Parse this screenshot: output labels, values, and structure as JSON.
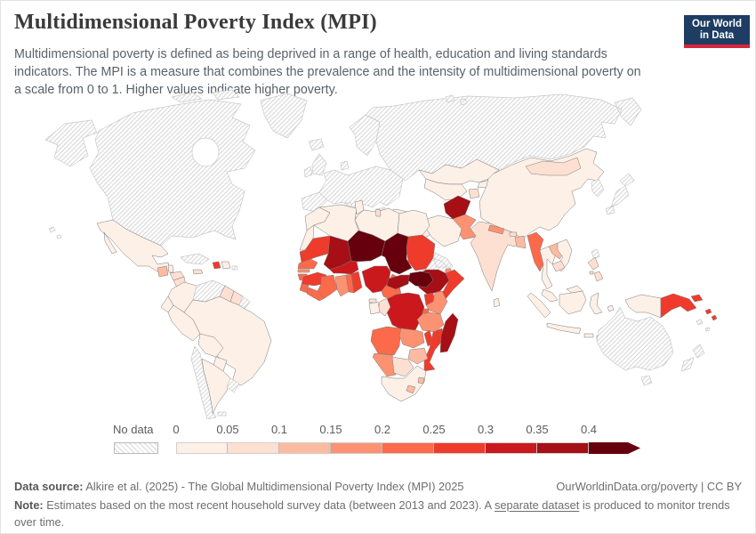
{
  "header": {
    "title": "Multidimensional Poverty Index (MPI)",
    "subtitle_lines": [
      "Multidimensional poverty is defined as being deprived in a range of health, education and living standards",
      "indicators. The MPI is a measure that combines the prevalence and the intensity of multidimensional poverty on",
      "a scale from 0 to 1. Higher values indicate higher poverty."
    ],
    "logo": {
      "line1": "Our World",
      "line2": "in Data",
      "bg": "#1d3d63",
      "bar": "#d7263d"
    }
  },
  "chart_data": {
    "type": "choropleth",
    "title": "Multidimensional Poverty Index (MPI)",
    "scale_note": "scale from 0 to 1, higher values indicate higher poverty",
    "legend": {
      "no_data_label": "No data",
      "tick_labels": [
        "0",
        "0.05",
        "0.1",
        "0.15",
        "0.2",
        "0.25",
        "0.3",
        "0.35",
        "0.4"
      ],
      "open_ended_max": true,
      "bins": [
        {
          "range": "0-0.05",
          "color": "#fdf0e7"
        },
        {
          "range": "0.05-0.1",
          "color": "#fee0d2"
        },
        {
          "range": "0.1-0.15",
          "color": "#fcbba1"
        },
        {
          "range": "0.15-0.2",
          "color": "#fc9272"
        },
        {
          "range": "0.2-0.25",
          "color": "#fb6a4a"
        },
        {
          "range": "0.25-0.3",
          "color": "#ef3b2c"
        },
        {
          "range": "0.3-0.35",
          "color": "#cb181d"
        },
        {
          "range": "0.35-0.4",
          "color": "#a50f15"
        },
        {
          "range": "0.4+",
          "color": "#67000d"
        }
      ],
      "no_data_style": {
        "background": "#ffffff",
        "stripe": "#d8d8d8"
      }
    },
    "regions": {
      "north-america": "no_data",
      "greenland": "no_data",
      "iceland": "no_data",
      "europe": "no_data",
      "russia": "no_data",
      "svalbard": "no_data",
      "cuba": "no_data",
      "puerto-rico": "no_data",
      "venezuela": "no_data",
      "french-guiana": "no_data",
      "chile": "no_data",
      "uruguay": "no_data",
      "falkland-islands": "no_data",
      "australia": "no_data",
      "new-zealand": "no_data",
      "japan": "no_data",
      "korea": "no_data",
      "taiwan": "no_data",
      "levant": "no_data",
      "saudi-arabia": "no_data",
      "eritrea": "no_data",
      "hawaii": "no_data",
      "pacific-islands": "no_data",
      "mexico": 0,
      "guatemala": 2,
      "belize": 0,
      "honduras": 1,
      "nicaragua": 1,
      "costa-rica": 0,
      "panama": 0,
      "jamaica": 1,
      "haiti": 5,
      "dominican-republic": 0,
      "colombia": 0,
      "guyana": 1,
      "suriname": 1,
      "ecuador": 0,
      "peru": 0,
      "brazil": 0,
      "bolivia": 0,
      "paraguay": 0,
      "argentina": 0,
      "morocco": 0,
      "western-sahara": 0,
      "algeria": 0,
      "tunisia": 0,
      "libya": 0,
      "egypt": 0,
      "mauritania": 5,
      "mali": 7,
      "niger": 8,
      "chad": 8,
      "sudan": 5,
      "south-sudan": 8,
      "djibouti": 3,
      "ethiopia": 7,
      "somalia": 5,
      "senegal": 4,
      "gambia": 3,
      "guinea-bissau": 4,
      "guinea": 5,
      "sierra-leone": 4,
      "liberia": 4,
      "ivory-coast": 4,
      "ghana": 3,
      "togo": 4,
      "benin": 5,
      "burkina-faso": 6,
      "nigeria": 6,
      "cameroon": 4,
      "central-african-republic": 7,
      "uganda": 5,
      "kenya": 3,
      "rwanda": 4,
      "burundi": 7,
      "drc": 6,
      "congo": 1,
      "gabon": 0,
      "equatorial-guinea": 1,
      "angola": 4,
      "zambia": 3,
      "tanzania": 3,
      "malawi": 5,
      "mozambique": 5,
      "zimbabwe": 2,
      "namibia": 3,
      "botswana": 1,
      "south-africa": 0,
      "lesotho": 2,
      "eswatini": 2,
      "madagascar": 7,
      "albania": 1,
      "turkey": 0,
      "iraq": 0,
      "iran": 0,
      "yemen": 3,
      "kazakhstan": 0,
      "uzbekistan": 0,
      "kyrgyzstan": 0,
      "tajikistan": 1,
      "afghanistan": 7,
      "pakistan": 3,
      "india": 1,
      "nepal": 3,
      "bhutan": 1,
      "bangladesh": 2,
      "sri-lanka": 0,
      "china": 0,
      "mongolia": 1,
      "myanmar": 4,
      "thailand": 0,
      "laos": 2,
      "vietnam": 0,
      "cambodia": 1,
      "malaysia": 0,
      "philippines": 1,
      "indonesia": 0,
      "timor-leste": 1,
      "papua-new-guinea": 5,
      "solomon-islands": 5
    }
  },
  "footer": {
    "data_source_label": "Data source:",
    "data_source_text": "Alkire et al. (2025) - The Global Multidimensional Poverty Index (MPI) 2025",
    "rights": "OurWorldinData.org/poverty | CC BY",
    "note_label": "Note:",
    "note_part1": "Estimates based on the most recent household survey data (between 2013 and 2023). A",
    "note_link": "separate dataset",
    "note_part2": "is produced to monitor trends over time."
  }
}
